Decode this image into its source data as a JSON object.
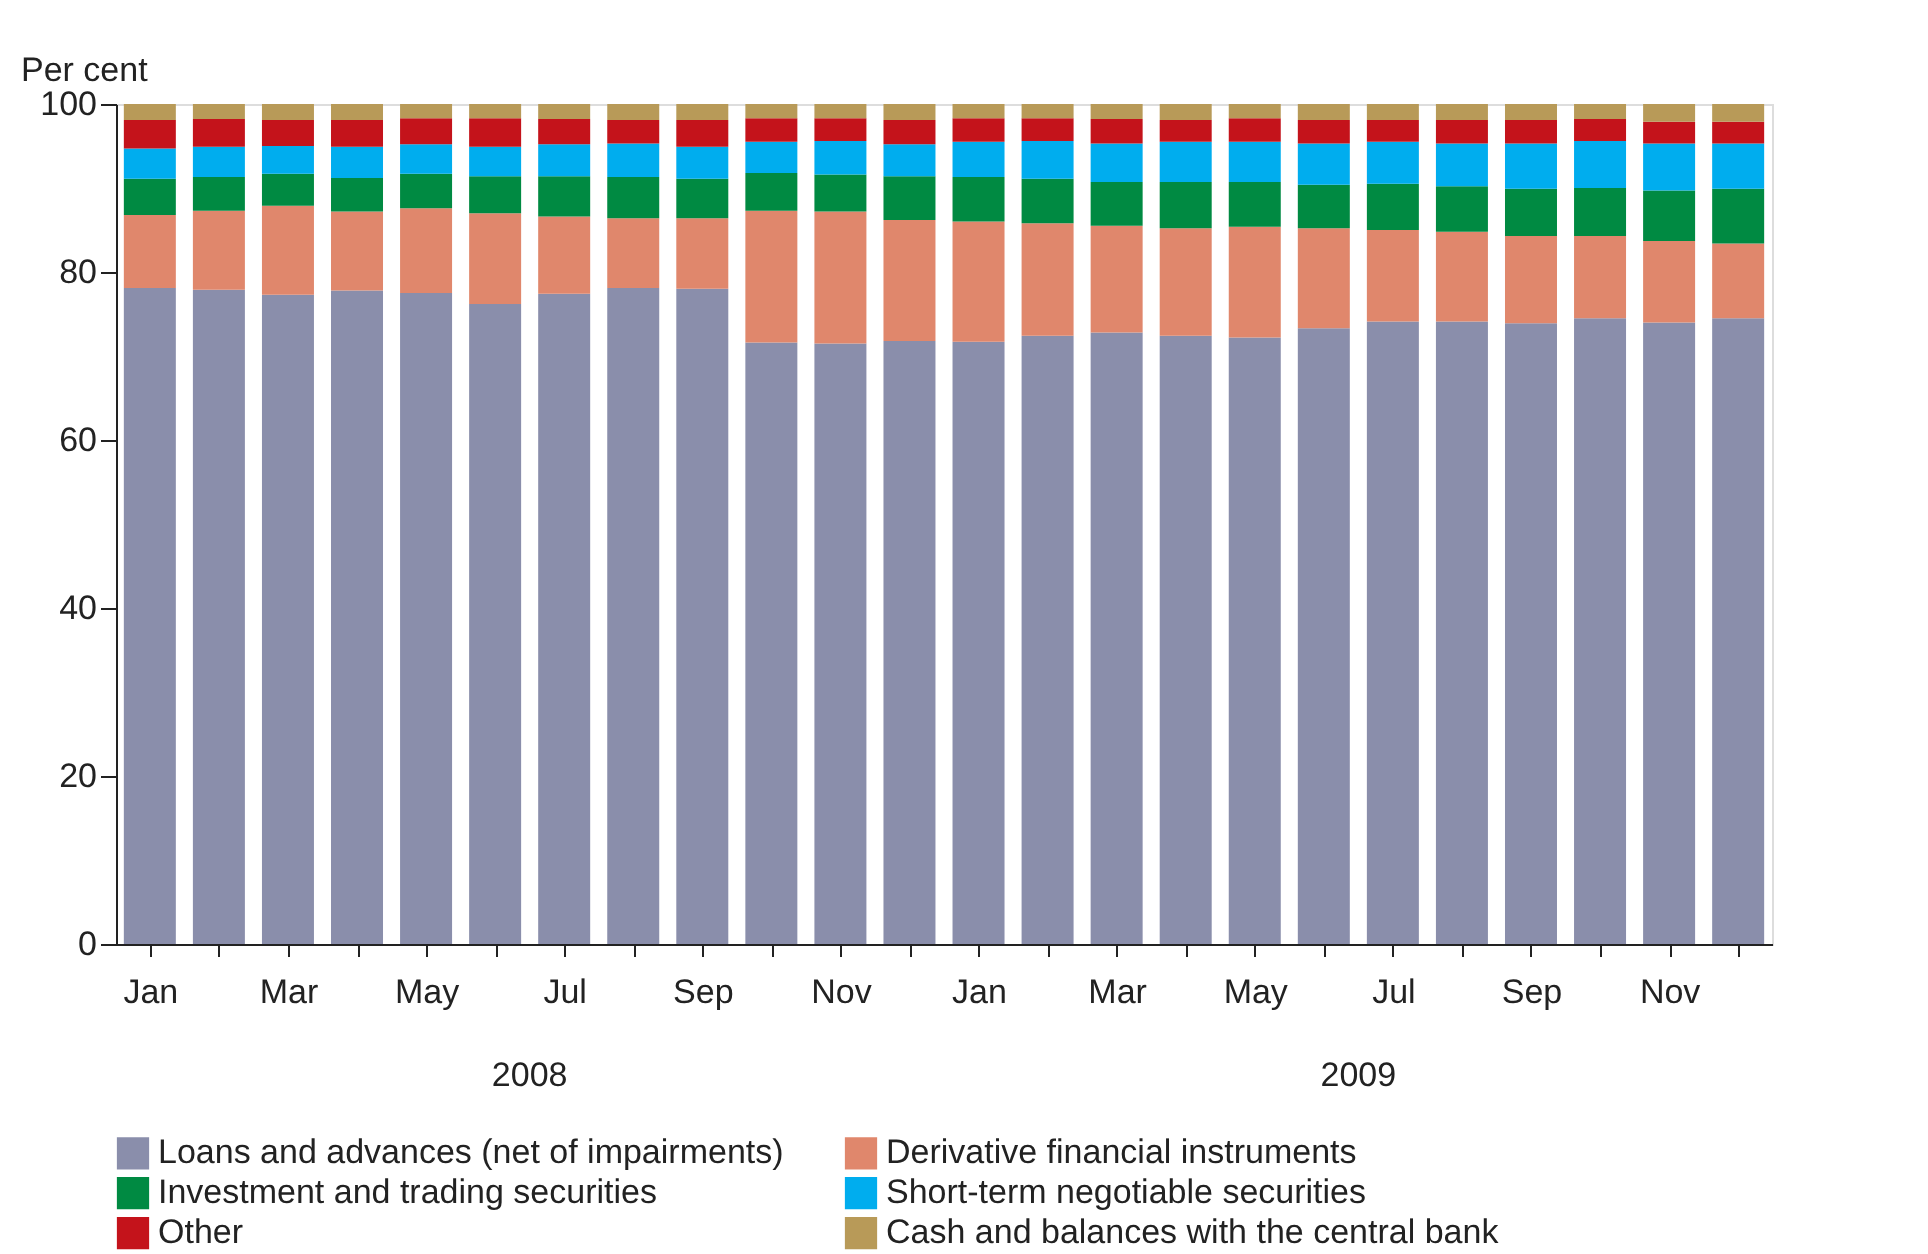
{
  "chart_data": {
    "type": "bar",
    "stacked": true,
    "ylabel": "Per cent",
    "categories": [
      "Jan",
      null,
      "Mar",
      null,
      "May",
      null,
      "Jul",
      null,
      "Sep",
      null,
      "Nov",
      null,
      "Jan",
      null,
      "Mar",
      null,
      "May",
      null,
      "Jul",
      null,
      "Sep",
      null,
      "Nov",
      null
    ],
    "annotations": [
      "2008",
      "2009"
    ],
    "ylim": [
      0,
      100
    ],
    "yticks": [
      0,
      20,
      40,
      60,
      80,
      100
    ],
    "grid": false,
    "legend": "bottom",
    "series": [
      {
        "name": "Loans and advances (net of impairments)",
        "color": "#8a8eab",
        "values": [
          78.1,
          77.9,
          77.3,
          77.8,
          77.5,
          76.2,
          77.4,
          78.1,
          78.0,
          71.6,
          71.5,
          71.8,
          71.7,
          72.4,
          72.8,
          72.4,
          72.2,
          73.3,
          74.1,
          74.1,
          73.9,
          74.5,
          74.0,
          74.5
        ]
      },
      {
        "name": "Derivative financial instruments",
        "color": "#e0876c",
        "values": [
          8.7,
          9.4,
          10.6,
          9.4,
          10.1,
          10.8,
          9.2,
          8.3,
          8.4,
          15.7,
          15.7,
          14.4,
          14.3,
          13.4,
          12.7,
          12.8,
          13.2,
          11.9,
          10.9,
          10.7,
          10.4,
          9.8,
          9.7,
          8.9
        ]
      },
      {
        "name": "Investment and trading securities",
        "color": "#008a42",
        "values": [
          4.3,
          4.0,
          3.8,
          4.0,
          4.1,
          4.4,
          4.8,
          4.9,
          4.7,
          4.5,
          4.4,
          5.2,
          5.3,
          5.3,
          5.2,
          5.5,
          5.3,
          5.2,
          5.5,
          5.4,
          5.6,
          5.7,
          6.0,
          6.5
        ]
      },
      {
        "name": "Short-term negotiable securities",
        "color": "#00adee",
        "values": [
          3.6,
          3.6,
          3.3,
          3.7,
          3.5,
          3.5,
          3.8,
          4.0,
          3.8,
          3.7,
          4.0,
          3.8,
          4.2,
          4.5,
          4.6,
          4.8,
          4.8,
          4.9,
          5.0,
          5.1,
          5.4,
          5.6,
          5.6,
          5.4
        ]
      },
      {
        "name": "Other",
        "color": "#c4131b",
        "values": [
          3.4,
          3.3,
          3.1,
          3.2,
          3.1,
          3.4,
          3.0,
          2.8,
          3.2,
          2.8,
          2.7,
          2.9,
          2.8,
          2.7,
          2.9,
          2.6,
          2.8,
          2.8,
          2.6,
          2.8,
          2.8,
          2.6,
          2.6,
          2.6
        ]
      },
      {
        "name": "Cash and balances with the central bank",
        "color": "#b89a58",
        "values": [
          1.9,
          1.8,
          1.9,
          1.9,
          1.7,
          1.7,
          1.8,
          1.9,
          1.9,
          1.7,
          1.7,
          1.9,
          1.7,
          1.7,
          1.8,
          1.9,
          1.7,
          1.9,
          1.9,
          1.9,
          1.9,
          1.8,
          2.1,
          2.1
        ]
      }
    ]
  }
}
